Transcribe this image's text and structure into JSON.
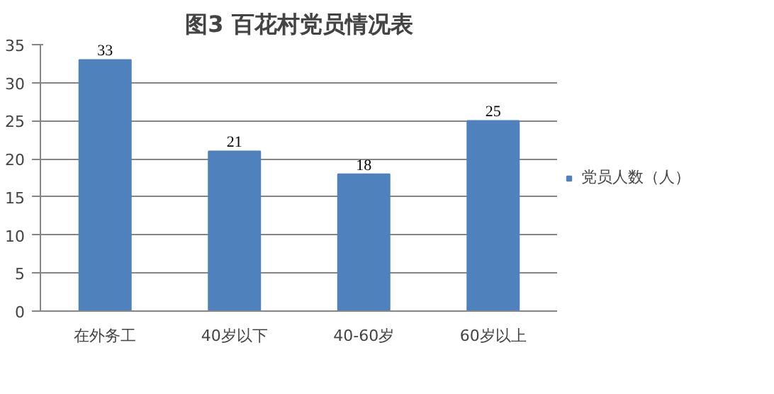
{
  "chart_data": {
    "type": "bar",
    "title": "图3 百花村党员情况表",
    "categories": [
      "在外务工",
      "40岁以下",
      "40-60岁",
      "60岁以上"
    ],
    "series": [
      {
        "name": "党员人数（人）",
        "color": "#4f81bd",
        "values": [
          33,
          21,
          18,
          25
        ]
      }
    ],
    "ylim": [
      0,
      35
    ],
    "yticks": [
      0,
      5,
      10,
      15,
      20,
      25,
      30,
      35
    ],
    "grid": "y",
    "legend": "right",
    "data_labels": true
  }
}
